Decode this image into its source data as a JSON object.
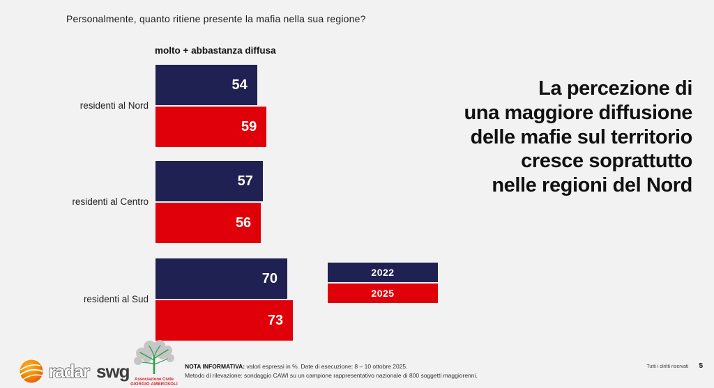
{
  "slide": {
    "question": "Personalmente, quanto ritiene presente la mafia nella sua regione?",
    "measure_label": "molto + abbastanza diffusa",
    "headline_lines": {
      "l1": "La percezione di",
      "l2": "una maggiore diffusione",
      "l3": "delle mafie sul territorio",
      "l4": "cresce soprattutto",
      "l5": "nelle regioni del Nord"
    }
  },
  "chart_data": {
    "type": "bar",
    "orientation": "horizontal",
    "title": "molto + abbastanza diffusa",
    "unit": "%",
    "categories": [
      "residenti al Nord",
      "residenti al Centro",
      "residenti al Sud"
    ],
    "series": [
      {
        "name": "2022",
        "color": "#1f2152",
        "values": [
          54,
          57,
          70
        ]
      },
      {
        "name": "2025",
        "color": "#e00009",
        "values": [
          59,
          56,
          73
        ]
      }
    ],
    "xlim": [
      0,
      100
    ],
    "value_labels": "inside-end, white bold",
    "legend_position": "right of Sud bars",
    "grid": false
  },
  "footer": {
    "radar_logo_text1": "radar",
    "radar_logo_text2": "swg",
    "tree_logo_line1": "Associazione Civile",
    "tree_logo_line2": "GIORGIO AMBROSOLI",
    "nota_label": "NOTA INFORMATIVA:",
    "nota_line1_rest": " valori espressi in %. Date di esecuzione: 8 – 10 ottobre 2025.",
    "nota_line2": "Metodo di rilevazione: sondaggio CAWI su un campione rappresentativo nazionale di 800 soggetti maggiorenni.",
    "rights": "Tutti i diritti riservati",
    "page_number": "5"
  },
  "colors": {
    "background": "#f2f2f2",
    "navy_2022": "#1f2152",
    "red_2025": "#e00009",
    "logo_orange": "#f08a00",
    "logo_red_text": "#d2232a",
    "tree_green": "#2f9e49"
  }
}
